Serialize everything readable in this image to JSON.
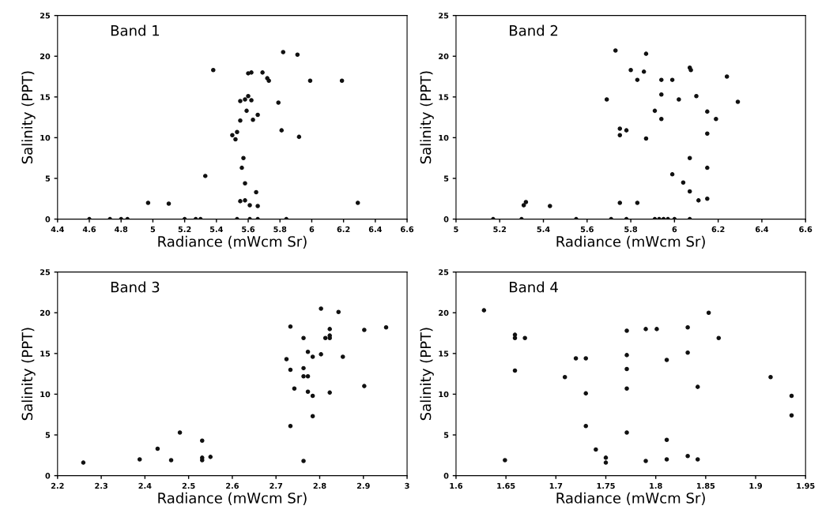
{
  "chart_data": [
    {
      "type": "scatter",
      "title": "Band 1",
      "xlabel": "Radiance (mWcm Sr)",
      "ylabel": "Salinity (PPT)",
      "xlim": [
        4.4,
        6.6
      ],
      "ylim": [
        0,
        25
      ],
      "xticks": [
        4.4,
        4.6,
        4.8,
        5,
        5.2,
        5.4,
        5.6,
        5.8,
        6,
        6.2,
        6.4,
        6.6
      ],
      "yticks": [
        0,
        5,
        10,
        15,
        20,
        25
      ],
      "marker": "circle",
      "grid": false,
      "series": [
        {
          "color": "#111111",
          "x": [
            4.97,
            5.1,
            5.33,
            5.38,
            5.5,
            5.52,
            5.53,
            5.55,
            5.55,
            5.55,
            5.56,
            5.57,
            5.58,
            5.58,
            5.58,
            5.59,
            5.6,
            5.6,
            5.61,
            5.62,
            5.62,
            5.63,
            5.65,
            5.66,
            5.66,
            5.69,
            5.72,
            5.73,
            5.79,
            5.81,
            5.82,
            5.91,
            5.92,
            5.99,
            6.19,
            6.29,
            4.6,
            4.73,
            4.8,
            4.84,
            5.2,
            5.27,
            5.3,
            5.53,
            5.61,
            5.66,
            5.84
          ],
          "values": [
            2,
            1.9,
            5.3,
            18.3,
            10.3,
            9.8,
            10.7,
            12.1,
            14.5,
            2.2,
            6.3,
            7.5,
            14.7,
            2.3,
            4.4,
            13.3,
            15.1,
            17.9,
            1.7,
            14.6,
            18,
            12.2,
            3.3,
            12.8,
            1.6,
            18,
            17.3,
            17,
            14.3,
            10.9,
            20.5,
            20.2,
            10.1,
            17,
            17,
            2,
            0,
            0,
            0,
            0,
            0,
            0,
            0,
            0,
            0,
            0,
            0
          ]
        }
      ]
    },
    {
      "type": "scatter",
      "title": "Band 2",
      "xlabel": "Radiance (mWcm Sr)",
      "ylabel": "Salinity (PPT)",
      "xlim": [
        5,
        6.6
      ],
      "ylim": [
        0,
        25
      ],
      "xticks": [
        5,
        5.2,
        5.4,
        5.6,
        5.8,
        6,
        6.2,
        6.4,
        6.6
      ],
      "yticks": [
        0,
        5,
        10,
        15,
        20,
        25
      ],
      "marker": "circle",
      "grid": false,
      "series": [
        {
          "color": "#111111",
          "x": [
            5.73,
            5.87,
            5.8,
            5.86,
            5.83,
            5.94,
            5.99,
            6.07,
            6.075,
            6.24,
            5.69,
            5.94,
            6.02,
            6.1,
            6.29,
            5.91,
            5.94,
            6.15,
            6.19,
            5.75,
            5.75,
            5.78,
            5.87,
            6.15,
            6.07,
            6.15,
            5.99,
            6.04,
            6.07,
            6.11,
            6.15,
            5.75,
            5.83,
            5.31,
            5.32,
            5.43,
            5.17,
            5.3,
            5.55,
            5.71,
            5.78,
            5.91,
            5.93,
            5.95,
            5.97,
            6.0,
            6.07
          ],
          "values": [
            20.7,
            20.3,
            18.3,
            18.1,
            17.1,
            17.1,
            17.1,
            18.6,
            18.3,
            17.5,
            14.7,
            15.3,
            14.7,
            15.1,
            14.4,
            13.3,
            12.3,
            13.2,
            12.3,
            11.1,
            10.3,
            10.9,
            9.9,
            10.5,
            7.5,
            6.3,
            5.5,
            4.5,
            3.4,
            2.3,
            2.5,
            2,
            2,
            1.7,
            2.1,
            1.6,
            0,
            0,
            0,
            0,
            0,
            0,
            0,
            0,
            0,
            0,
            0
          ]
        }
      ]
    },
    {
      "type": "scatter",
      "title": "Band 3",
      "xlabel": "Radiance (mWcm Sr)",
      "ylabel": "Salinity (PPT)",
      "xlim": [
        2.2,
        3
      ],
      "ylim": [
        0,
        25
      ],
      "xticks": [
        2.2,
        2.3,
        2.4,
        2.5,
        2.6,
        2.7,
        2.8,
        2.9,
        3
      ],
      "yticks": [
        0,
        5,
        10,
        15,
        20,
        25
      ],
      "marker": "circle",
      "grid": false,
      "series": [
        {
          "color": "#111111",
          "x": [
            2.259,
            2.388,
            2.429,
            2.46,
            2.48,
            2.531,
            2.531,
            2.531,
            2.55,
            2.733,
            2.724,
            2.733,
            2.742,
            2.733,
            2.763,
            2.773,
            2.763,
            2.763,
            2.773,
            2.784,
            2.773,
            2.784,
            2.784,
            2.763,
            2.803,
            2.803,
            2.813,
            2.823,
            2.823,
            2.823,
            2.823,
            2.843,
            2.853,
            2.902,
            2.902,
            2.952
          ],
          "values": [
            1.6,
            2,
            3.3,
            1.9,
            5.3,
            4.3,
            2.2,
            1.9,
            2.3,
            18.3,
            14.3,
            13,
            10.7,
            6.1,
            16.9,
            15.2,
            13.2,
            12.2,
            12.2,
            14.6,
            10.3,
            9.8,
            7.3,
            1.8,
            20.5,
            14.9,
            16.9,
            18,
            17.2,
            16.9,
            10.2,
            20.1,
            14.6,
            17.9,
            11,
            18.2
          ]
        }
      ]
    },
    {
      "type": "scatter",
      "title": "Band 4",
      "xlabel": "Radiance (mWcm Sr)",
      "ylabel": "Salinity (PPT)",
      "xlim": [
        1.6,
        1.95
      ],
      "ylim": [
        0,
        25
      ],
      "xticks": [
        1.6,
        1.65,
        1.7,
        1.75,
        1.8,
        1.85,
        1.9,
        1.95
      ],
      "yticks": [
        0,
        5,
        10,
        15,
        20,
        25
      ],
      "marker": "circle",
      "grid": false,
      "series": [
        {
          "color": "#111111",
          "x": [
            1.628,
            1.649,
            1.659,
            1.659,
            1.659,
            1.669,
            1.709,
            1.72,
            1.73,
            1.73,
            1.73,
            1.74,
            1.75,
            1.75,
            1.771,
            1.771,
            1.771,
            1.771,
            1.771,
            1.79,
            1.801,
            1.79,
            1.811,
            1.811,
            1.811,
            1.832,
            1.832,
            1.832,
            1.842,
            1.842,
            1.853,
            1.863,
            1.915,
            1.936,
            1.936
          ],
          "values": [
            20.3,
            1.9,
            17.3,
            16.9,
            12.9,
            16.9,
            12.1,
            14.4,
            14.4,
            10.1,
            6.1,
            3.2,
            2.2,
            1.6,
            17.8,
            14.8,
            13.1,
            10.7,
            5.3,
            18,
            18,
            1.8,
            14.2,
            4.4,
            2,
            18.2,
            15.1,
            2.4,
            10.9,
            2,
            20,
            16.9,
            12.1,
            9.8,
            7.4
          ]
        }
      ]
    }
  ]
}
